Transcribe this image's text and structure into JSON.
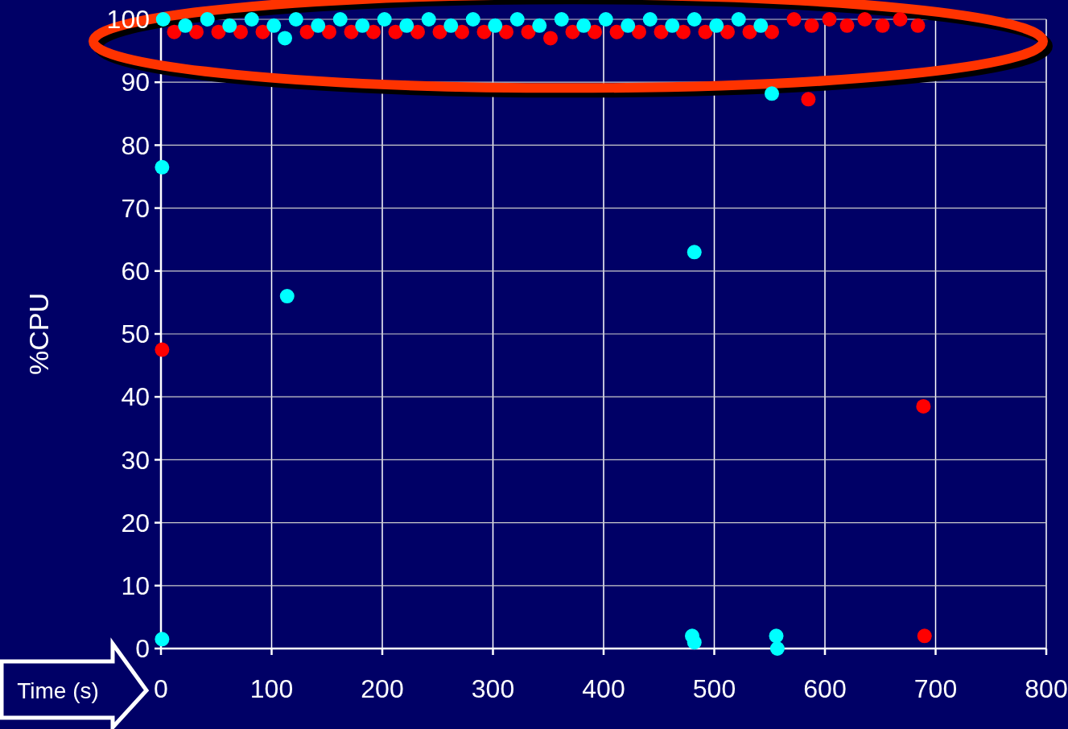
{
  "chart_data": {
    "type": "scatter",
    "xlabel": "Time (s)",
    "ylabel": "%CPU",
    "xlim": [
      0,
      800
    ],
    "ylim": [
      0,
      100
    ],
    "xticks": [
      0,
      100,
      200,
      300,
      400,
      500,
      600,
      700,
      800
    ],
    "yticks": [
      0,
      10,
      20,
      30,
      40,
      50,
      60,
      70,
      80,
      90,
      100
    ],
    "grid": true,
    "marker": "circle",
    "series": [
      {
        "color": "#ff0000",
        "x": [
          12,
          32,
          52,
          72,
          92,
          132,
          152,
          172,
          192,
          212,
          232,
          252,
          272,
          292,
          312,
          332,
          352,
          372,
          392,
          412,
          432,
          452,
          472,
          492,
          512,
          532,
          552,
          572,
          588,
          604,
          620,
          636,
          652,
          668,
          684,
          1,
          585,
          689,
          690
        ],
        "values": [
          98,
          98,
          98,
          98,
          98,
          98,
          98,
          98,
          98,
          98,
          98,
          98,
          98,
          98,
          98,
          98,
          97,
          98,
          98,
          98,
          98,
          98,
          98,
          98,
          98,
          98,
          98,
          100,
          99,
          100,
          99,
          100,
          99,
          100,
          99,
          47.5,
          87.3,
          38.5,
          2
        ]
      },
      {
        "color": "#00ffff",
        "x": [
          2,
          22,
          42,
          62,
          82,
          102,
          112,
          122,
          142,
          162,
          182,
          202,
          222,
          242,
          262,
          282,
          302,
          322,
          342,
          362,
          382,
          402,
          422,
          442,
          462,
          482,
          502,
          522,
          542,
          1,
          1,
          114,
          482,
          480,
          482,
          552,
          556,
          557
        ],
        "values": [
          100,
          99,
          100,
          99,
          100,
          99,
          97,
          100,
          99,
          100,
          99,
          100,
          99,
          100,
          99,
          100,
          99,
          100,
          99,
          100,
          99,
          100,
          99,
          100,
          99,
          100,
          99,
          100,
          99,
          76.5,
          1.5,
          56,
          63,
          2,
          1,
          88.2,
          2,
          0
        ]
      }
    ]
  }
}
